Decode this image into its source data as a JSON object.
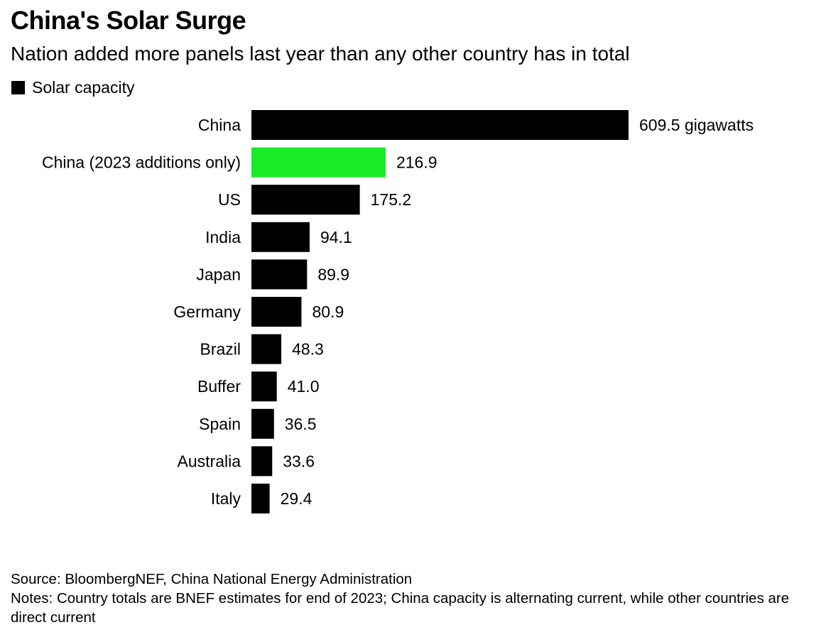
{
  "title": "China's Solar Surge",
  "subtitle": "Nation added more panels last year than any other country has in total",
  "legend": {
    "label": "Solar capacity",
    "color": "#000000"
  },
  "chart_data": {
    "type": "bar",
    "orientation": "horizontal",
    "series": [
      {
        "name": "Solar capacity",
        "values": [
          609.5,
          216.9,
          175.2,
          94.1,
          89.9,
          80.9,
          48.3,
          41.0,
          36.5,
          33.6,
          29.4
        ]
      }
    ],
    "categories": [
      "China",
      "China (2023 additions only)",
      "US",
      "India",
      "Japan",
      "Germany",
      "Brazil",
      "Buffer",
      "Spain",
      "Australia",
      "Italy"
    ],
    "values": [
      609.5,
      216.9,
      175.2,
      94.1,
      89.9,
      80.9,
      48.3,
      41.0,
      36.5,
      33.6,
      29.4
    ],
    "value_labels": [
      "609.5 gigawatts",
      "216.9",
      "175.2",
      "94.1",
      "89.9",
      "80.9",
      "48.3",
      "41.0",
      "36.5",
      "33.6",
      "29.4"
    ],
    "bar_colors": [
      "#000000",
      "#1aeb27",
      "#000000",
      "#000000",
      "#000000",
      "#000000",
      "#000000",
      "#000000",
      "#000000",
      "#000000",
      "#000000"
    ],
    "xlim": [
      0,
      609.5
    ],
    "grid": false,
    "legend_position": "top-left"
  },
  "source": "Source: BloombergNEF, China National Energy Administration",
  "notes": "Notes: Country totals are BNEF estimates for end of 2023; China capacity is alternating current, while other countries are direct current"
}
